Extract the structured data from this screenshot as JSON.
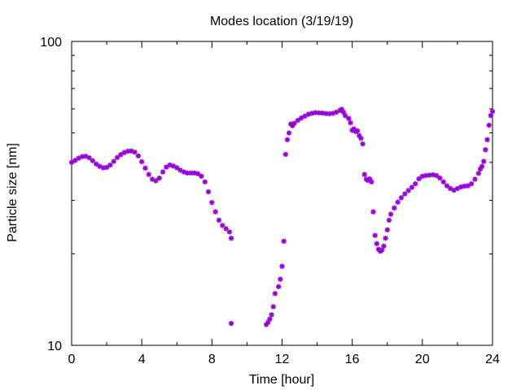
{
  "chart_data": {
    "type": "scatter",
    "title": "Modes location (3/19/19)",
    "xlabel": "Time [hour]",
    "ylabel": "Particle size [nm]",
    "xlim": [
      0,
      24
    ],
    "ylim": [
      10,
      100
    ],
    "yscale": "log",
    "xticks": [
      0,
      4,
      8,
      12,
      16,
      20,
      24
    ],
    "yticks": [
      10,
      100
    ],
    "grid": false,
    "legend": "none",
    "marker_color": "#9400d3",
    "series": [
      {
        "marker": "asterisk",
        "points": [
          [
            0.0,
            40.0
          ],
          [
            0.2,
            40.6
          ],
          [
            0.4,
            41.3
          ],
          [
            0.6,
            41.8
          ],
          [
            0.8,
            41.9
          ],
          [
            1.0,
            41.4
          ],
          [
            1.2,
            40.5
          ],
          [
            1.4,
            39.5
          ],
          [
            1.6,
            38.8
          ],
          [
            1.8,
            38.4
          ],
          [
            2.0,
            38.5
          ],
          [
            2.2,
            39.2
          ],
          [
            2.4,
            40.3
          ],
          [
            2.6,
            41.5
          ],
          [
            2.8,
            42.4
          ],
          [
            3.0,
            43.1
          ],
          [
            3.2,
            43.5
          ],
          [
            3.4,
            43.6
          ],
          [
            3.6,
            43.2
          ],
          [
            3.8,
            42.0
          ],
          [
            4.0,
            40.2
          ],
          [
            4.2,
            38.3
          ],
          [
            4.4,
            36.5
          ],
          [
            4.6,
            35.2
          ],
          [
            4.8,
            34.8
          ],
          [
            5.0,
            35.5
          ],
          [
            5.2,
            37.2
          ],
          [
            5.4,
            38.6
          ],
          [
            5.6,
            39.2
          ],
          [
            5.8,
            38.9
          ],
          [
            6.0,
            38.4
          ],
          [
            6.2,
            37.7
          ],
          [
            6.4,
            37.2
          ],
          [
            6.6,
            36.9
          ],
          [
            6.8,
            36.9
          ],
          [
            7.0,
            36.9
          ],
          [
            7.2,
            36.7
          ],
          [
            7.4,
            36.0
          ],
          [
            7.6,
            34.5
          ],
          [
            7.8,
            32.0
          ],
          [
            8.0,
            29.5
          ],
          [
            8.2,
            27.5
          ],
          [
            8.4,
            25.8
          ],
          [
            8.6,
            24.8
          ],
          [
            8.8,
            24.2
          ],
          [
            9.0,
            23.6
          ],
          [
            9.1,
            22.5
          ],
          [
            9.1,
            11.8
          ],
          [
            11.1,
            11.7
          ],
          [
            11.2,
            11.9
          ],
          [
            11.3,
            12.2
          ],
          [
            11.4,
            12.6
          ],
          [
            11.5,
            13.4
          ],
          [
            11.6,
            14.8
          ],
          [
            11.8,
            15.6
          ],
          [
            11.9,
            16.5
          ],
          [
            12.0,
            18.2
          ],
          [
            12.1,
            22.0
          ],
          [
            12.2,
            42.5
          ],
          [
            12.3,
            47.5
          ],
          [
            12.4,
            50.0
          ],
          [
            12.5,
            53.5
          ],
          [
            12.6,
            52.8
          ],
          [
            12.7,
            53.8
          ],
          [
            12.9,
            55.0
          ],
          [
            13.1,
            56.0
          ],
          [
            13.3,
            56.8
          ],
          [
            13.5,
            57.6
          ],
          [
            13.7,
            58.0
          ],
          [
            13.9,
            58.3
          ],
          [
            14.1,
            58.2
          ],
          [
            14.3,
            58.1
          ],
          [
            14.5,
            57.9
          ],
          [
            14.7,
            57.8
          ],
          [
            14.9,
            58.0
          ],
          [
            15.1,
            58.5
          ],
          [
            15.3,
            59.3
          ],
          [
            15.4,
            59.8
          ],
          [
            15.5,
            58.5
          ],
          [
            15.6,
            57.0
          ],
          [
            15.8,
            55.8
          ],
          [
            15.9,
            54.0
          ],
          [
            16.0,
            51.0
          ],
          [
            16.1,
            51.5
          ],
          [
            16.2,
            50.5
          ],
          [
            16.3,
            50.8
          ],
          [
            16.4,
            49.0
          ],
          [
            16.5,
            48.0
          ],
          [
            16.6,
            46.0
          ],
          [
            16.7,
            36.5
          ],
          [
            16.8,
            35.2
          ],
          [
            16.9,
            34.9
          ],
          [
            17.0,
            35.3
          ],
          [
            17.1,
            34.5
          ],
          [
            17.2,
            27.5
          ],
          [
            17.3,
            23.0
          ],
          [
            17.4,
            21.6
          ],
          [
            17.5,
            20.7
          ],
          [
            17.6,
            20.4
          ],
          [
            17.7,
            20.6
          ],
          [
            17.8,
            21.2
          ],
          [
            17.9,
            22.5
          ],
          [
            18.0,
            24.0
          ],
          [
            18.1,
            25.8
          ],
          [
            18.2,
            27.0
          ],
          [
            18.4,
            28.3
          ],
          [
            18.6,
            29.6
          ],
          [
            18.8,
            30.6
          ],
          [
            19.0,
            31.5
          ],
          [
            19.2,
            32.3
          ],
          [
            19.4,
            33.1
          ],
          [
            19.6,
            34.0
          ],
          [
            19.8,
            35.3
          ],
          [
            20.0,
            36.0
          ],
          [
            20.2,
            36.2
          ],
          [
            20.4,
            36.3
          ],
          [
            20.6,
            36.4
          ],
          [
            20.8,
            36.2
          ],
          [
            21.0,
            35.5
          ],
          [
            21.2,
            34.5
          ],
          [
            21.4,
            33.5
          ],
          [
            21.6,
            32.8
          ],
          [
            21.8,
            32.4
          ],
          [
            22.0,
            32.8
          ],
          [
            22.2,
            33.2
          ],
          [
            22.4,
            33.4
          ],
          [
            22.6,
            33.5
          ],
          [
            22.8,
            34.0
          ],
          [
            23.0,
            35.2
          ],
          [
            23.2,
            36.8
          ],
          [
            23.3,
            38.0
          ],
          [
            23.4,
            38.8
          ],
          [
            23.5,
            40.3
          ],
          [
            23.6,
            44.0
          ],
          [
            23.7,
            47.5
          ],
          [
            23.8,
            53.0
          ],
          [
            23.9,
            57.0
          ],
          [
            24.0,
            58.8
          ]
        ]
      }
    ]
  }
}
